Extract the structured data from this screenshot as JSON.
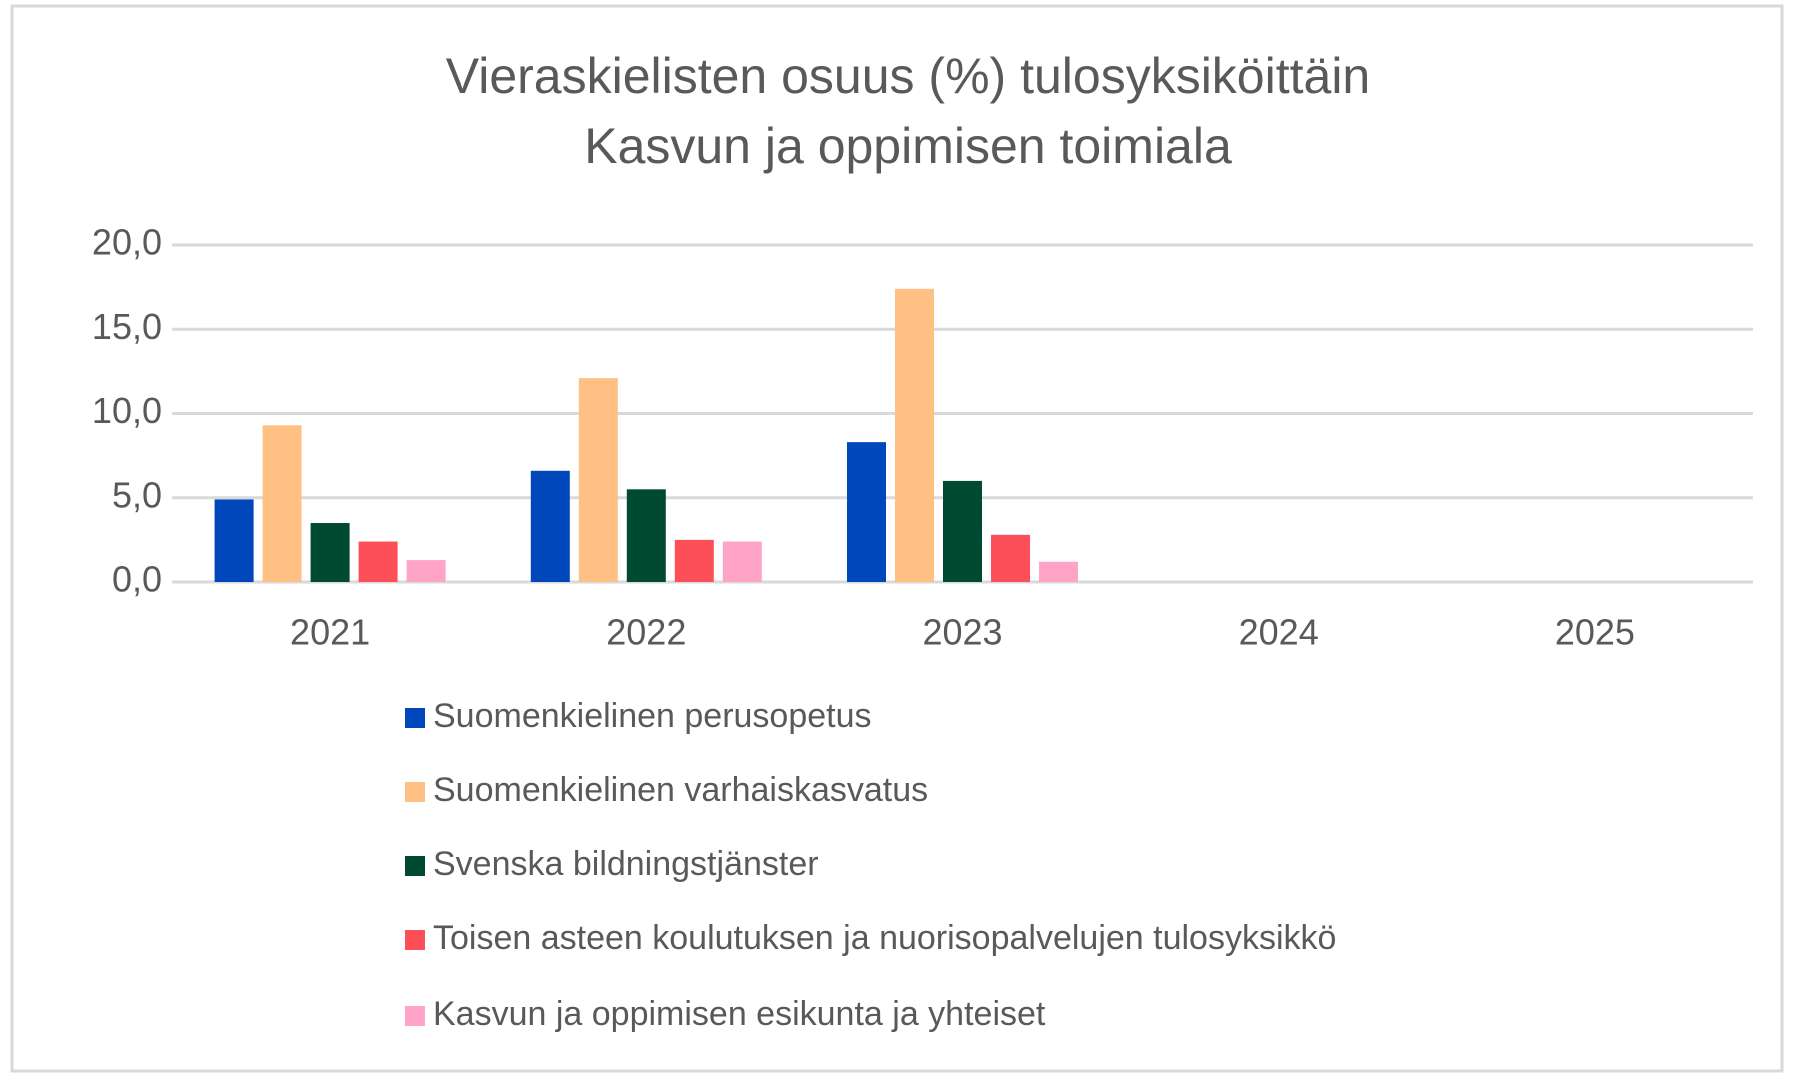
{
  "chart_data": {
    "type": "bar",
    "title": [
      "Vieraskielisten osuus (%) tulosyksiköittäin",
      "Kasvun ja oppimisen toimiala"
    ],
    "categories": [
      "2021",
      "2022",
      "2023",
      "2024",
      "2025"
    ],
    "series": [
      {
        "name": "Suomenkielinen perusopetus",
        "color": "#0047bb",
        "values": [
          4.9,
          6.6,
          8.3,
          null,
          null
        ]
      },
      {
        "name": "Suomenkielinen varhaiskasvatus",
        "color": "#ffc183",
        "values": [
          9.3,
          12.1,
          17.4,
          null,
          null
        ]
      },
      {
        "name": "Svenska bildningstjänster",
        "color": "#004a32",
        "values": [
          3.5,
          5.5,
          6.0,
          null,
          null
        ]
      },
      {
        "name": "Toisen asteen koulutuksen ja nuorisopalvelujen tulosyksikkö",
        "color": "#fd4f57",
        "values": [
          2.4,
          2.5,
          2.8,
          null,
          null
        ]
      },
      {
        "name": "Kasvun ja oppimisen esikunta ja yhteiset",
        "color": "#ffa3c7",
        "values": [
          1.3,
          2.4,
          1.2,
          null,
          null
        ]
      }
    ],
    "ylim": [
      0,
      20
    ],
    "yticks": [
      {
        "value": 0,
        "label": "0,0"
      },
      {
        "value": 5,
        "label": "5,0"
      },
      {
        "value": 10,
        "label": "10,0"
      },
      {
        "value": 15,
        "label": "15,0"
      },
      {
        "value": 20,
        "label": "20,0"
      }
    ],
    "grid": true,
    "legend": "bottom"
  }
}
